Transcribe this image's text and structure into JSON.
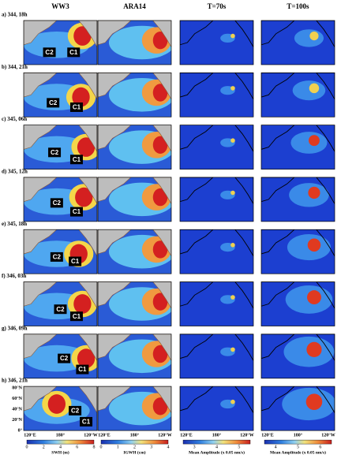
{
  "columns": [
    "WW3",
    "ARA14",
    "T=70s",
    "T=100s"
  ],
  "rows": [
    {
      "label": "a) 344, 18h",
      "markers": [
        "C2",
        "C1"
      ]
    },
    {
      "label": "b) 344, 21h",
      "markers": [
        "C2",
        "C1"
      ]
    },
    {
      "label": "c) 345, 06h",
      "markers": [
        "C2",
        "C1"
      ]
    },
    {
      "label": "d) 345, 12h",
      "markers": [
        "C2",
        "C1"
      ]
    },
    {
      "label": "e) 345, 18h",
      "markers": [
        "C2",
        "C1"
      ]
    },
    {
      "label": "f) 346, 03h",
      "markers": [
        "C2",
        "C1"
      ]
    },
    {
      "label": "g) 346, 09h",
      "markers": [
        "C2",
        "C1"
      ]
    },
    {
      "label": "h) 346, 21h",
      "markers": [
        "C2",
        "C1"
      ]
    }
  ],
  "lat_labels": [
    "80°N",
    "60°N",
    "40°N",
    "20°N",
    "0°"
  ],
  "lon_labels": [
    "120°E",
    "180°",
    "120°W"
  ],
  "colorbars": [
    {
      "label": "SWH (m)",
      "ticks": [
        "0",
        "2",
        "4",
        "6",
        "8"
      ]
    },
    {
      "label": "IGWH (cm)",
      "ticks": [
        "0",
        "1",
        "2",
        "3",
        "4"
      ]
    },
    {
      "label": "Mean Amplitude (x 0.05 nm/s)",
      "ticks": [
        "3",
        "4",
        "5"
      ]
    },
    {
      "label": "Mean Amplitude (x 0.05 nm/s)",
      "ticks": [
        "4",
        "5",
        "6"
      ]
    }
  ]
}
